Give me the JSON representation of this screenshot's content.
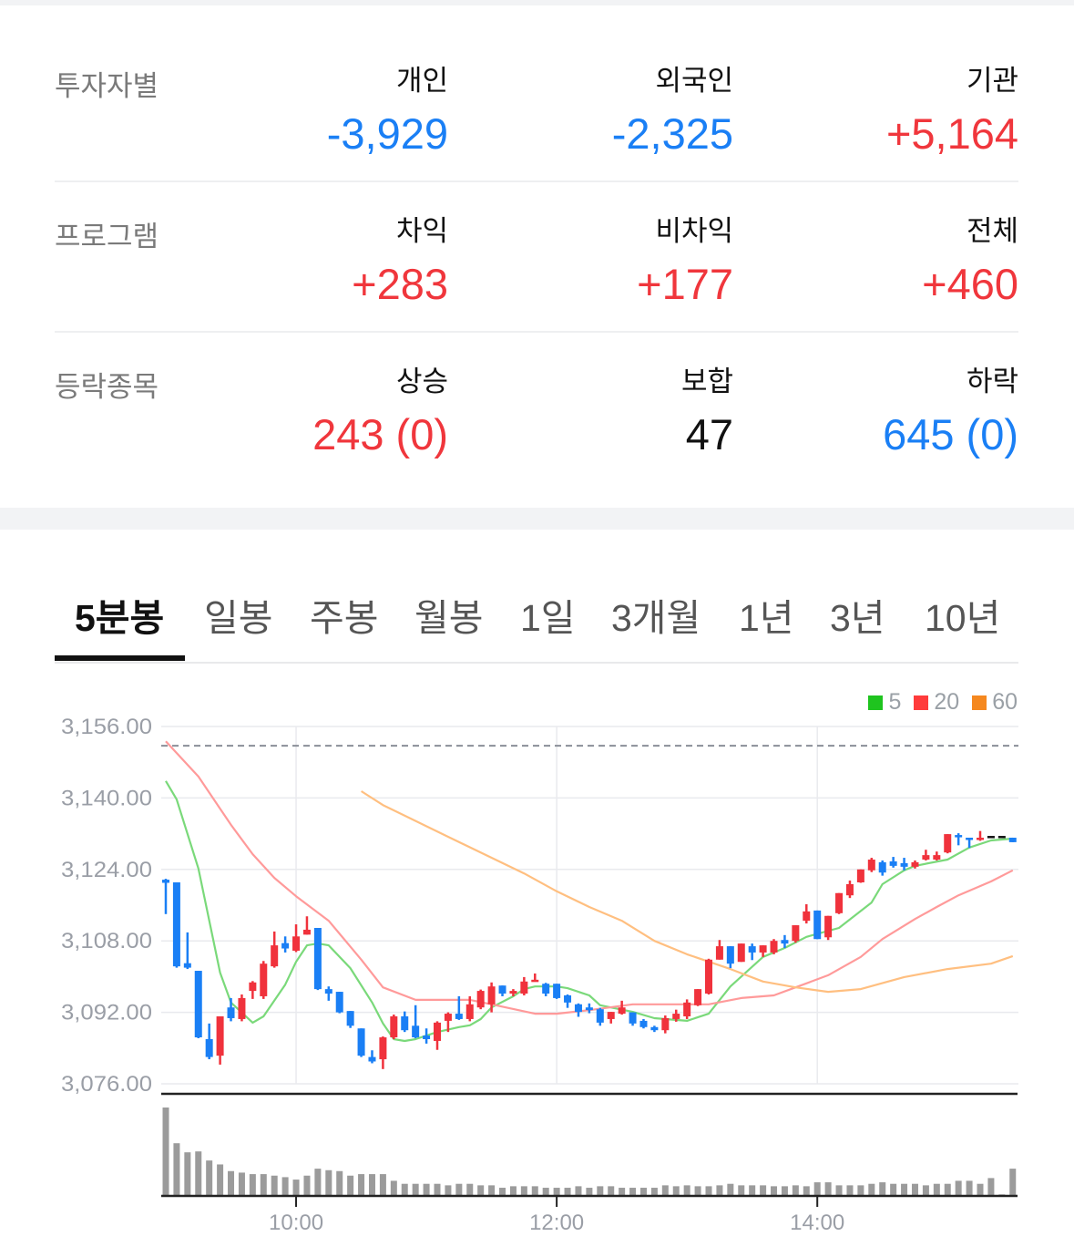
{
  "investors": {
    "label": "투자자별",
    "columns": [
      {
        "header": "개인",
        "value": "-3,929",
        "tone": "blue"
      },
      {
        "header": "외국인",
        "value": "-2,325",
        "tone": "blue"
      },
      {
        "header": "기관",
        "value": "+5,164",
        "tone": "red"
      }
    ]
  },
  "program": {
    "label": "프로그램",
    "columns": [
      {
        "header": "차익",
        "value": "+283",
        "tone": "red"
      },
      {
        "header": "비차익",
        "value": "+177",
        "tone": "red"
      },
      {
        "header": "전체",
        "value": "+460",
        "tone": "red"
      }
    ]
  },
  "breadth": {
    "label": "등락종목",
    "columns": [
      {
        "header": "상승",
        "value": "243 (0)",
        "tone": "red"
      },
      {
        "header": "보합",
        "value": "47",
        "tone": "black"
      },
      {
        "header": "하락",
        "value": "645 (0)",
        "tone": "blue"
      }
    ]
  },
  "tabs": [
    {
      "label": "5분봉",
      "active": true
    },
    {
      "label": "일봉"
    },
    {
      "label": "주봉"
    },
    {
      "label": "월봉"
    },
    {
      "label": "1일"
    },
    {
      "label": "3개월"
    },
    {
      "label": "1년"
    },
    {
      "label": "3년"
    },
    {
      "label": "10년"
    }
  ],
  "colors": {
    "up": "#f0323c",
    "down": "#1a7ff5",
    "ma5": "#1fc41f",
    "ma20": "#ff3b3b",
    "ma60": "#f5881f"
  },
  "chart_data": {
    "type": "candlestick",
    "interval": "5min",
    "ylim": [
      3076,
      3156
    ],
    "y_ticks": [
      "3,156.00",
      "3,140.00",
      "3,124.00",
      "3,108.00",
      "3,092.00",
      "3,076.00"
    ],
    "y_tick_values": [
      3156,
      3140,
      3124,
      3108,
      3092,
      3076
    ],
    "x_ticks": [
      "10:00",
      "12:00",
      "14:00"
    ],
    "grid": true,
    "legend": {
      "placement": "top-right",
      "items": [
        {
          "label": "5",
          "color": "#1fc41f"
        },
        {
          "label": "20",
          "color": "#ff3b3b"
        },
        {
          "label": "60",
          "color": "#f5881f"
        }
      ]
    },
    "reference_line": 3151.7,
    "candles_fields": [
      "time",
      "open",
      "high",
      "low",
      "close"
    ],
    "candles": [
      [
        "09:00",
        3121.7,
        3121.9,
        3114.0,
        3121.0
      ],
      [
        "09:05",
        3121.1,
        3121.1,
        3102.0,
        3102.3
      ],
      [
        "09:10",
        3103.0,
        3109.9,
        3101.7,
        3102.0
      ],
      [
        "09:15",
        3101.3,
        3101.3,
        3086.2,
        3086.4
      ],
      [
        "09:20",
        3086.0,
        3089.5,
        3081.5,
        3082.0
      ],
      [
        "09:25",
        3082.3,
        3091.1,
        3080.3,
        3091.1
      ],
      [
        "09:30",
        3093.1,
        3095.2,
        3090.0,
        3090.7
      ],
      [
        "09:35",
        3090.5,
        3096.0,
        3090.0,
        3095.2
      ],
      [
        "09:40",
        3096.8,
        3099.0,
        3095.0,
        3098.7
      ],
      [
        "09:45",
        3095.6,
        3103.5,
        3095.0,
        3102.9
      ],
      [
        "09:50",
        3102.3,
        3110.1,
        3102.0,
        3107.0
      ],
      [
        "09:55",
        3107.5,
        3109.0,
        3105.4,
        3106.3
      ],
      [
        "10:00",
        3105.8,
        3111.7,
        3105.5,
        3109.0
      ],
      [
        "10:05",
        3109.4,
        3113.5,
        3109.4,
        3110.5
      ],
      [
        "10:10",
        3110.9,
        3110.9,
        3097.0,
        3097.2
      ],
      [
        "10:15",
        3097.2,
        3097.8,
        3094.6,
        3096.2
      ],
      [
        "10:20",
        3096.6,
        3096.6,
        3091.8,
        3092.0
      ],
      [
        "10:25",
        3092.3,
        3092.3,
        3088.5,
        3089.0
      ],
      [
        "10:30",
        3088.4,
        3088.4,
        3082.0,
        3082.3
      ],
      [
        "10:35",
        3082.0,
        3083.5,
        3080.6,
        3081.0
      ],
      [
        "10:40",
        3081.5,
        3086.6,
        3079.3,
        3086.4
      ],
      [
        "10:45",
        3086.4,
        3091.5,
        3086.0,
        3091.1
      ],
      [
        "10:50",
        3091.1,
        3092.2,
        3087.6,
        3088.0
      ],
      [
        "10:55",
        3089.0,
        3093.6,
        3086.2,
        3086.4
      ],
      [
        "11:00",
        3086.8,
        3088.4,
        3085.0,
        3086.0
      ],
      [
        "11:05",
        3085.6,
        3090.0,
        3083.6,
        3089.7
      ],
      [
        "11:10",
        3090.1,
        3092.0,
        3087.6,
        3091.7
      ],
      [
        "11:15",
        3091.7,
        3095.6,
        3090.3,
        3090.5
      ],
      [
        "11:20",
        3090.5,
        3095.6,
        3090.0,
        3093.8
      ],
      [
        "11:25",
        3093.1,
        3097.1,
        3092.7,
        3096.8
      ],
      [
        "11:30",
        3093.8,
        3098.7,
        3092.0,
        3097.8
      ],
      [
        "11:35",
        3098.0,
        3098.0,
        3095.6,
        3096.2
      ],
      [
        "11:40",
        3096.2,
        3097.2,
        3095.6,
        3096.8
      ],
      [
        "11:45",
        3096.2,
        3099.9,
        3095.8,
        3098.9
      ],
      [
        "11:50",
        3099.0,
        3100.7,
        3099.0,
        3099.3
      ],
      [
        "11:55",
        3098.4,
        3098.6,
        3095.6,
        3096.2
      ],
      [
        "12:00",
        3098.4,
        3098.4,
        3095.0,
        3095.2
      ],
      [
        "12:05",
        3095.8,
        3096.0,
        3093.0,
        3094.2
      ],
      [
        "12:10",
        3093.8,
        3094.0,
        3091.0,
        3092.1
      ],
      [
        "12:15",
        3093.1,
        3094.0,
        3091.8,
        3092.5
      ],
      [
        "12:20",
        3092.7,
        3093.0,
        3089.0,
        3089.7
      ],
      [
        "12:25",
        3090.5,
        3092.1,
        3089.5,
        3092.1
      ],
      [
        "12:30",
        3091.7,
        3094.6,
        3091.5,
        3093.1
      ],
      [
        "12:35",
        3092.0,
        3092.0,
        3089.0,
        3089.5
      ],
      [
        "12:40",
        3090.1,
        3090.5,
        3088.4,
        3088.7
      ],
      [
        "12:45",
        3088.7,
        3089.0,
        3087.6,
        3088.0
      ],
      [
        "12:50",
        3088.0,
        3091.3,
        3087.3,
        3090.7
      ],
      [
        "12:55",
        3090.5,
        3092.6,
        3089.9,
        3091.7
      ],
      [
        "13:00",
        3091.1,
        3094.9,
        3090.5,
        3094.2
      ],
      [
        "13:05",
        3093.6,
        3097.2,
        3093.4,
        3097.2
      ],
      [
        "13:10",
        3096.2,
        3104.0,
        3096.0,
        3103.8
      ],
      [
        "13:15",
        3103.8,
        3108.2,
        3103.8,
        3106.8
      ],
      [
        "13:20",
        3106.8,
        3106.8,
        3101.9,
        3102.9
      ],
      [
        "13:25",
        3103.3,
        3107.4,
        3103.3,
        3107.4
      ],
      [
        "13:30",
        3106.8,
        3107.4,
        3103.7,
        3105.4
      ],
      [
        "13:35",
        3105.4,
        3107.0,
        3104.4,
        3107.0
      ],
      [
        "13:40",
        3105.4,
        3108.4,
        3105.0,
        3108.0
      ],
      [
        "13:45",
        3108.2,
        3109.3,
        3106.4,
        3107.4
      ],
      [
        "13:50",
        3108.0,
        3111.5,
        3107.6,
        3111.5
      ],
      [
        "13:55",
        3112.5,
        3116.2,
        3111.9,
        3114.6
      ],
      [
        "14:00",
        3114.8,
        3114.8,
        3108.4,
        3108.4
      ],
      [
        "14:05",
        3108.8,
        3113.6,
        3108.2,
        3113.6
      ],
      [
        "14:10",
        3114.2,
        3118.7,
        3114.0,
        3118.7
      ],
      [
        "14:15",
        3118.2,
        3121.5,
        3117.6,
        3120.7
      ],
      [
        "14:20",
        3121.1,
        3124.0,
        3121.0,
        3124.0
      ],
      [
        "14:25",
        3123.8,
        3126.6,
        3123.4,
        3126.2
      ],
      [
        "14:30",
        3125.6,
        3126.0,
        3122.6,
        3123.3
      ],
      [
        "14:35",
        3125.8,
        3126.8,
        3124.4,
        3124.8
      ],
      [
        "14:40",
        3125.4,
        3126.6,
        3123.8,
        3124.6
      ],
      [
        "14:45",
        3124.6,
        3126.0,
        3124.2,
        3125.6
      ],
      [
        "14:50",
        3126.2,
        3128.4,
        3126.0,
        3127.2
      ],
      [
        "14:55",
        3126.2,
        3128.0,
        3126.0,
        3127.2
      ],
      [
        "15:00",
        3127.8,
        3131.9,
        3127.6,
        3131.9
      ],
      [
        "15:05",
        3131.7,
        3132.1,
        3129.4,
        3131.3
      ],
      [
        "15:10",
        3131.1,
        3131.1,
        3128.8,
        3130.6
      ],
      [
        "15:15",
        3130.6,
        3132.6,
        3130.4,
        3131.1
      ],
      [
        "15:20",
        3131.5,
        3131.5,
        3131.5,
        3131.5
      ],
      [
        "15:25",
        3131.5,
        3131.5,
        3131.5,
        3131.5
      ],
      [
        "15:30",
        3131.1,
        3131.1,
        3130.1,
        3130.1
      ]
    ],
    "volume_relative": [
      292,
      174,
      144,
      147,
      117,
      104,
      82,
      77,
      72,
      72,
      67,
      62,
      54,
      67,
      90,
      85,
      82,
      67,
      72,
      72,
      72,
      50,
      40,
      40,
      40,
      40,
      35,
      40,
      40,
      35,
      35,
      27,
      32,
      32,
      32,
      27,
      27,
      27,
      32,
      27,
      32,
      32,
      27,
      27,
      27,
      27,
      35,
      32,
      35,
      32,
      32,
      35,
      40,
      35,
      35,
      35,
      32,
      32,
      35,
      32,
      45,
      45,
      35,
      35,
      35,
      40,
      45,
      40,
      40,
      40,
      35,
      40,
      40,
      50,
      50,
      40,
      59,
      5,
      90
    ],
    "ma": [
      {
        "name": "5",
        "color": "#7ad97a",
        "points": [
          [
            "09:00",
            3143.8
          ],
          [
            "09:05",
            3139.7
          ],
          [
            "09:15",
            3124.2
          ],
          [
            "09:25",
            3100.9
          ],
          [
            "09:30",
            3094.2
          ],
          [
            "09:40",
            3089.7
          ],
          [
            "09:45",
            3091.1
          ],
          [
            "09:55",
            3098.2
          ],
          [
            "10:00",
            3103.3
          ],
          [
            "10:05",
            3107.0
          ],
          [
            "10:10",
            3107.4
          ],
          [
            "10:15",
            3107.0
          ],
          [
            "10:25",
            3101.9
          ],
          [
            "10:35",
            3094.2
          ],
          [
            "10:40",
            3089.5
          ],
          [
            "10:45",
            3086.0
          ],
          [
            "10:50",
            3085.6
          ],
          [
            "10:55",
            3086.0
          ],
          [
            "11:05",
            3087.6
          ],
          [
            "11:15",
            3088.7
          ],
          [
            "11:20",
            3089.1
          ],
          [
            "11:25",
            3090.5
          ],
          [
            "11:30",
            3093.1
          ],
          [
            "11:40",
            3095.6
          ],
          [
            "11:45",
            3097.2
          ],
          [
            "11:50",
            3097.8
          ],
          [
            "12:00",
            3097.8
          ],
          [
            "12:05",
            3097.4
          ],
          [
            "12:15",
            3095.8
          ],
          [
            "12:20",
            3093.6
          ],
          [
            "12:35",
            3092.1
          ],
          [
            "12:45",
            3090.7
          ],
          [
            "13:00",
            3090.1
          ],
          [
            "13:10",
            3091.7
          ],
          [
            "13:20",
            3097.8
          ],
          [
            "13:35",
            3104.4
          ],
          [
            "13:45",
            3106.4
          ],
          [
            "13:55",
            3108.9
          ],
          [
            "14:10",
            3110.9
          ],
          [
            "14:25",
            3116.6
          ],
          [
            "14:30",
            3120.7
          ],
          [
            "14:40",
            3123.8
          ],
          [
            "14:45",
            3124.8
          ],
          [
            "15:00",
            3126.2
          ],
          [
            "15:10",
            3128.9
          ],
          [
            "15:20",
            3130.5
          ],
          [
            "15:30",
            3130.9
          ]
        ]
      },
      {
        "name": "20",
        "color": "#ff9a9a",
        "points": [
          [
            "09:00",
            3152.7
          ],
          [
            "09:15",
            3144.8
          ],
          [
            "09:30",
            3134.0
          ],
          [
            "09:40",
            3127.4
          ],
          [
            "09:50",
            3122.1
          ],
          [
            "10:00",
            3118.0
          ],
          [
            "10:15",
            3112.5
          ],
          [
            "10:30",
            3103.8
          ],
          [
            "10:40",
            3097.6
          ],
          [
            "10:55",
            3094.8
          ],
          [
            "11:20",
            3094.8
          ],
          [
            "11:30",
            3093.8
          ],
          [
            "11:50",
            3091.7
          ],
          [
            "12:00",
            3091.7
          ],
          [
            "12:15",
            3092.5
          ],
          [
            "12:35",
            3093.8
          ],
          [
            "13:10",
            3093.8
          ],
          [
            "13:25",
            3095.2
          ],
          [
            "13:40",
            3095.8
          ],
          [
            "13:50",
            3097.6
          ],
          [
            "14:05",
            3100.3
          ],
          [
            "14:20",
            3104.4
          ],
          [
            "14:30",
            3108.4
          ],
          [
            "14:45",
            3112.9
          ],
          [
            "14:55",
            3115.6
          ],
          [
            "15:05",
            3118.2
          ],
          [
            "15:20",
            3121.3
          ],
          [
            "15:30",
            3123.8
          ]
        ]
      },
      {
        "name": "60",
        "color": "#ffbf80",
        "points": [
          [
            "10:30",
            3141.5
          ],
          [
            "10:40",
            3138.4
          ],
          [
            "11:10",
            3131.3
          ],
          [
            "11:45",
            3123.1
          ],
          [
            "12:00",
            3119.1
          ],
          [
            "12:15",
            3115.6
          ],
          [
            "12:30",
            3112.5
          ],
          [
            "12:45",
            3108.0
          ],
          [
            "13:00",
            3105.0
          ],
          [
            "13:20",
            3101.7
          ],
          [
            "13:35",
            3098.9
          ],
          [
            "13:50",
            3097.6
          ],
          [
            "14:05",
            3096.6
          ],
          [
            "14:20",
            3097.2
          ],
          [
            "14:40",
            3099.9
          ],
          [
            "15:00",
            3101.7
          ],
          [
            "15:20",
            3102.9
          ],
          [
            "15:30",
            3104.6
          ]
        ]
      }
    ]
  }
}
